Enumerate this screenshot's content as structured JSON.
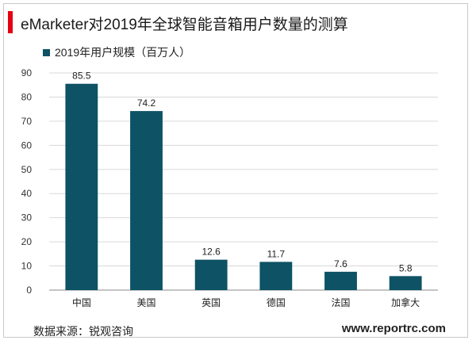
{
  "header": {
    "title": "eMarketer对2019年全球智能音箱用户数量的测算"
  },
  "legend": {
    "label": "2019年用户规模（百万人）"
  },
  "footer": {
    "source": "数据来源：锐观咨询",
    "watermark": "www.reportrc.com"
  },
  "colors": {
    "accent": "#e60012",
    "bar": "#0d5265",
    "grid": "#d9d9d9",
    "axis": "#888888"
  },
  "chart_data": {
    "type": "bar",
    "title": "eMarketer对2019年全球智能音箱用户数量的测算",
    "categories": [
      "中国",
      "美国",
      "英国",
      "德国",
      "法国",
      "加拿大"
    ],
    "series": [
      {
        "name": "2019年用户规模（百万人）",
        "values": [
          85.5,
          74.2,
          12.6,
          11.7,
          7.6,
          5.8
        ]
      }
    ],
    "ylim": [
      0,
      90
    ],
    "yticks": [
      0,
      10,
      20,
      30,
      40,
      50,
      60,
      70,
      80,
      90
    ],
    "xlabel": "",
    "ylabel": "",
    "grid": true,
    "legend_position": "top-left",
    "data_labels": true
  }
}
